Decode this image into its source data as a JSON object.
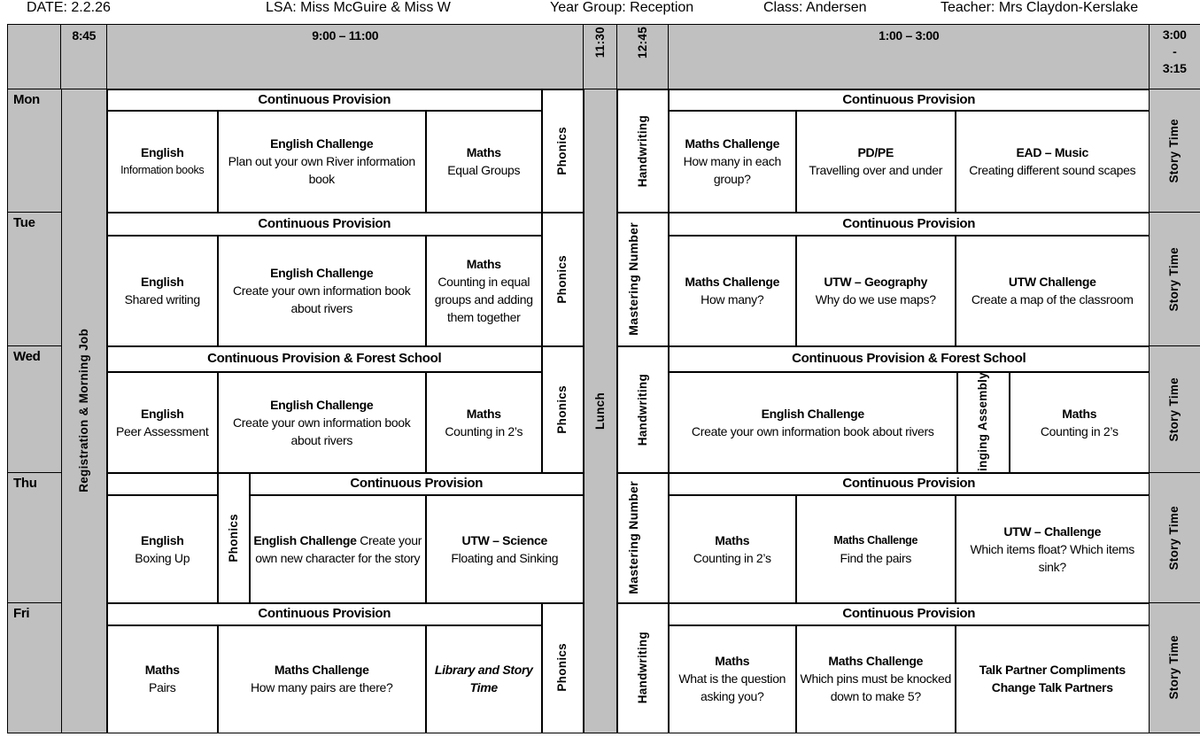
{
  "header": {
    "date": "DATE:  2.2.26",
    "lsa": "LSA:  Miss McGuire & Miss W",
    "year_group": "Year Group: Reception",
    "class": "Class: Andersen",
    "teacher": "Teacher: Mrs Claydon-Kerslake"
  },
  "times": {
    "t845": "8:45",
    "morning": "9:00 – 11:00",
    "t1130": "11:30",
    "t1245": "12:45",
    "afternoon": "1:00 – 3:00",
    "end_a": "3:00",
    "end_b": "-",
    "end_c": "3:15"
  },
  "registration": "Registration & Morning Job",
  "lunch": "Lunch",
  "days": [
    {
      "label": "Mon",
      "am_band": "Continuous Provision",
      "am": [
        {
          "title": "English",
          "body": "Information books"
        },
        {
          "title": "English Challenge",
          "body": "Plan out your own River information book"
        },
        {
          "title": "Maths",
          "body": "Equal Groups"
        }
      ],
      "phonics": "Phonics",
      "pm_side": "Handwriting",
      "pm_band": "Continuous Provision",
      "pm": [
        {
          "title": "Maths Challenge",
          "body": "How many in each group?"
        },
        {
          "title": "PD/PE",
          "body": "Travelling over and under"
        },
        {
          "title": "EAD – Music",
          "body": "Creating different sound scapes"
        }
      ],
      "story": "Story Time"
    },
    {
      "label": "Tue",
      "am_band": "Continuous Provision",
      "am": [
        {
          "title": "English",
          "body": "Shared writing"
        },
        {
          "title": "English Challenge",
          "body": "Create your own information book about rivers"
        },
        {
          "title": "Maths",
          "body": "Counting in equal groups and adding them together"
        }
      ],
      "phonics": "Phonics",
      "pm_side": "Mastering Number",
      "pm_band": "Continuous Provision",
      "pm": [
        {
          "title": "Maths Challenge",
          "body": "How many?"
        },
        {
          "title": "UTW – Geography",
          "body": "Why do we use maps?"
        },
        {
          "title": "UTW Challenge",
          "body": "Create a map of the classroom"
        }
      ],
      "story": "Story Time"
    },
    {
      "label": "Wed",
      "am_band": "Continuous Provision  & Forest School",
      "am": [
        {
          "title": "English",
          "body": "Peer Assessment"
        },
        {
          "title": "English Challenge",
          "body": "Create your own information book about rivers"
        },
        {
          "title": "Maths",
          "body": "Counting in 2’s"
        }
      ],
      "phonics": "Phonics",
      "pm_side": "Handwriting",
      "pm_band": "Continuous Provision  & Forest School",
      "pm": [
        {
          "title": "English Challenge",
          "body": "Create your own information book about rivers"
        },
        {
          "title": "Singing Assembly"
        },
        {
          "title": "Maths",
          "body": "Counting in 2’s"
        }
      ],
      "story": "Story Time"
    },
    {
      "label": "Thu",
      "am_band": "Continuous Provision",
      "am": [
        {
          "title": "English",
          "body": "Boxing Up"
        },
        {
          "title": "English Challenge",
          "body": " Create your own new character for the story"
        },
        {
          "title": "UTW – Science",
          "body": "Floating and Sinking"
        }
      ],
      "phonics": "Phonics",
      "pm_side": "Mastering Number",
      "pm_band": "Continuous Provision",
      "pm": [
        {
          "title": "Maths",
          "body": "Counting in 2’s"
        },
        {
          "title": "Maths Challenge",
          "body": "Find the pairs"
        },
        {
          "title": "UTW – Challenge",
          "body": "Which items float? Which items sink?"
        }
      ],
      "story": "Story Time"
    },
    {
      "label": "Fri",
      "am_band": "Continuous Provision",
      "am": [
        {
          "title": "Maths",
          "body": "Pairs"
        },
        {
          "title": "Maths Challenge",
          "body": "How many pairs are there?"
        },
        {
          "title": "Library and Story Time"
        }
      ],
      "phonics": "Phonics",
      "pm_side": "Handwriting",
      "pm_band": "Continuous Provision",
      "pm": [
        {
          "title": "Maths",
          "body": "What is the question asking you?"
        },
        {
          "title": "Maths Challenge",
          "body": "Which pins must be knocked down to make 5?"
        },
        {
          "title": "Talk Partner Compliments",
          "title2": "Change Talk Partners"
        }
      ],
      "story": "Story Time"
    }
  ]
}
